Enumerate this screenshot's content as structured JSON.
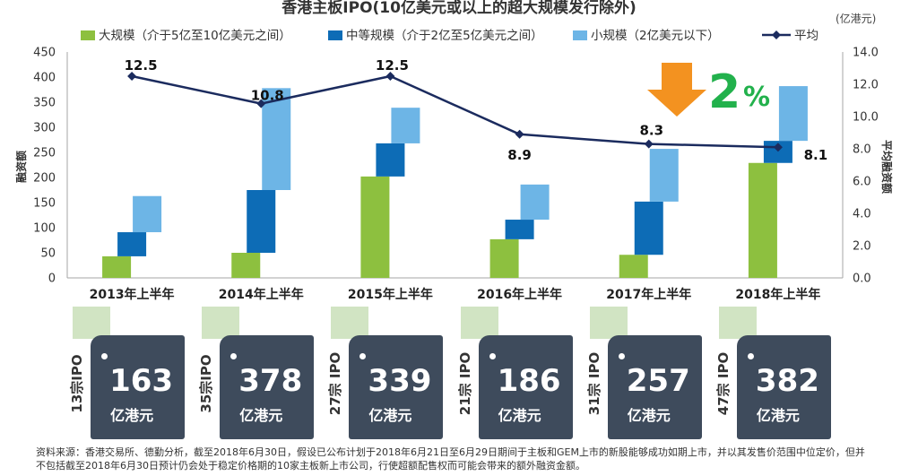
{
  "chart_data": {
    "type": "bar",
    "stacking": "waterfall",
    "title": "香港主板IPO(10亿美元或以上的超大规模发行除外)",
    "unit_note": "(亿港元)",
    "ylabel": "融资额",
    "y2label": "平均融资额",
    "categories": [
      "2013年上半年",
      "2014年上半年",
      "2015年上半年",
      "2016年上半年",
      "2017年上半年",
      "2018年上半年"
    ],
    "ylim": [
      0,
      450
    ],
    "yticks": [
      "0",
      "50",
      "100",
      "150",
      "200",
      "250",
      "300",
      "350",
      "400",
      "450"
    ],
    "y2lim": [
      0,
      14
    ],
    "y2ticks": [
      "0.0",
      "2.0",
      "4.0",
      "6.0",
      "8.0",
      "10.0",
      "12.0",
      "14.0"
    ],
    "series": [
      {
        "name": "大规模（介于5亿至10亿美元之间）",
        "type": "bar",
        "color": "#8dc03f",
        "values": [
          43,
          50,
          202,
          77,
          46,
          229
        ]
      },
      {
        "name": "中等规模（介于2亿至5亿美元之间）",
        "type": "bar",
        "color": "#0d6cb6",
        "values": [
          48,
          125,
          66,
          39,
          106,
          44
        ]
      },
      {
        "name": "小规模（2亿美元以下）",
        "type": "bar",
        "color": "#6db5e6",
        "values": [
          72,
          203,
          71,
          70,
          105,
          109
        ]
      },
      {
        "name": "平均",
        "type": "line",
        "axis": "right",
        "color": "#1b2b5e",
        "values": [
          12.5,
          10.8,
          12.5,
          8.9,
          8.3,
          8.1
        ]
      }
    ],
    "legend_position": "top",
    "grid": false,
    "annotation": {
      "arrow": "down",
      "arrow_color": "#f39220",
      "value": "2",
      "suffix": "%",
      "color": "#22b14c"
    }
  },
  "cards": [
    {
      "count": "13宗IPO",
      "total": "163",
      "unit": "亿港元"
    },
    {
      "count": "35宗IPO",
      "total": "378",
      "unit": "亿港元"
    },
    {
      "count": "27宗 IPO",
      "total": "339",
      "unit": "亿港元"
    },
    {
      "count": "21宗 IPO",
      "total": "186",
      "unit": "亿港元"
    },
    {
      "count": "31宗 IPO",
      "total": "257",
      "unit": "亿港元"
    },
    {
      "count": "47宗 IPO",
      "total": "382",
      "unit": "亿港元"
    }
  ],
  "colors": {
    "card": "#3e4b5c",
    "card_tab": "#d1e4c3",
    "axis": "#a6a6a6"
  },
  "footer": {
    "lines": [
      "资料来源：香港交易所、德勤分析，截至2018年6月30日，假设已公布计划于2018年6月21日至6月29日期间于主板和GEM上市的新股能够成功如期上市，并以其发售价范围中位定价，但并",
      "不包括截至2018年6月30日预计仍会处于稳定价格期的10家主板新上市公司，行使超额配售权而可能会带来的额外融资金额。"
    ]
  }
}
